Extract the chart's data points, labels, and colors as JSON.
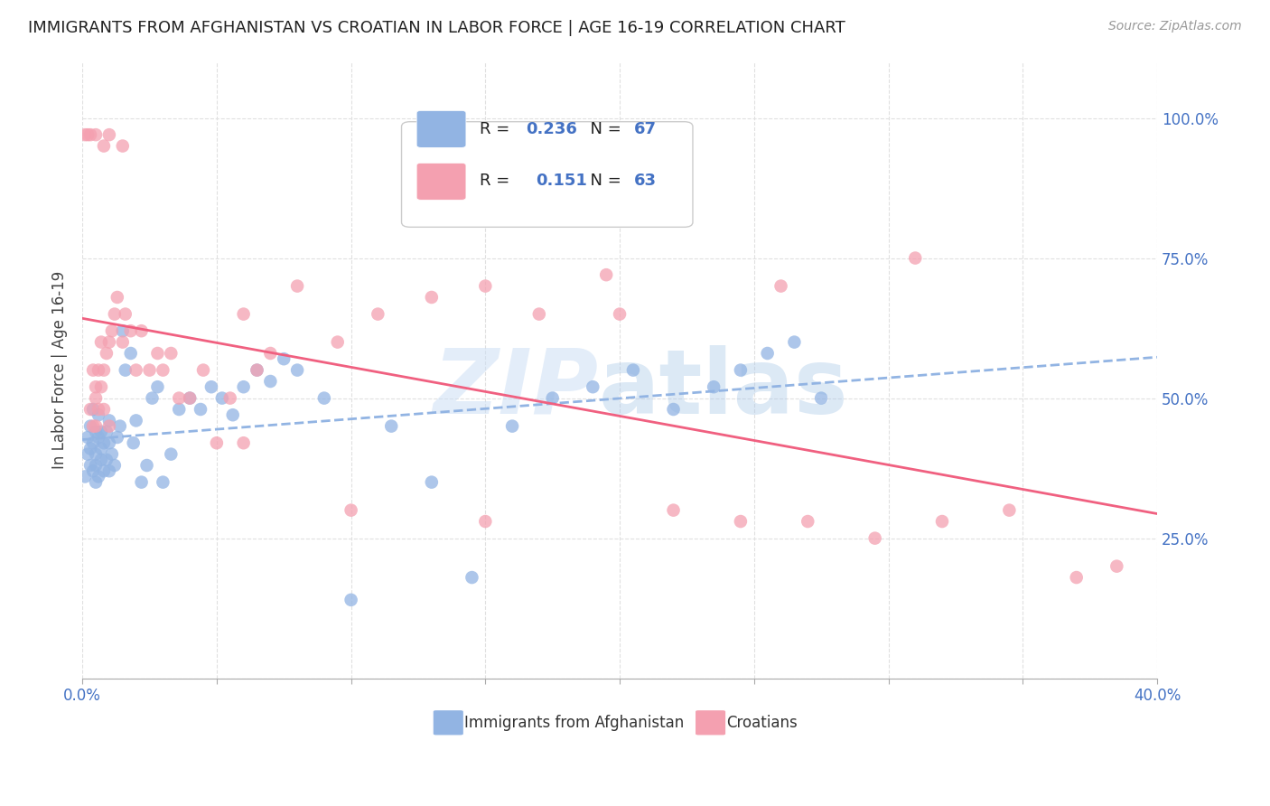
{
  "title": "IMMIGRANTS FROM AFGHANISTAN VS CROATIAN IN LABOR FORCE | AGE 16-19 CORRELATION CHART",
  "source": "Source: ZipAtlas.com",
  "ylabel": "In Labor Force | Age 16-19",
  "xlim": [
    0.0,
    0.4
  ],
  "ylim": [
    0.0,
    1.1
  ],
  "yticks": [
    0.0,
    0.25,
    0.5,
    0.75,
    1.0
  ],
  "ytick_labels_right": [
    "",
    "25.0%",
    "50.0%",
    "75.0%",
    "100.0%"
  ],
  "xticks": [
    0.0,
    0.05,
    0.1,
    0.15,
    0.2,
    0.25,
    0.3,
    0.35,
    0.4
  ],
  "xtick_labels": [
    "0.0%",
    "",
    "",
    "",
    "",
    "",
    "",
    "",
    "40.0%"
  ],
  "afghanistan_color": "#92b4e3",
  "croatian_color": "#f4a0b0",
  "croatian_line_color": "#f06080",
  "legend_r_afghan": "0.236",
  "legend_n_afghan": "67",
  "legend_r_croatian": "0.151",
  "legend_n_croatian": "63",
  "background_color": "#ffffff",
  "grid_color": "#e0e0e0",
  "afghanistan_x": [
    0.001,
    0.002,
    0.002,
    0.003,
    0.003,
    0.003,
    0.004,
    0.004,
    0.004,
    0.005,
    0.005,
    0.005,
    0.005,
    0.006,
    0.006,
    0.006,
    0.007,
    0.007,
    0.007,
    0.008,
    0.008,
    0.009,
    0.009,
    0.01,
    0.01,
    0.01,
    0.011,
    0.012,
    0.013,
    0.014,
    0.015,
    0.016,
    0.018,
    0.019,
    0.02,
    0.022,
    0.024,
    0.026,
    0.028,
    0.03,
    0.033,
    0.036,
    0.04,
    0.044,
    0.048,
    0.052,
    0.056,
    0.06,
    0.065,
    0.07,
    0.075,
    0.08,
    0.09,
    0.1,
    0.115,
    0.13,
    0.145,
    0.16,
    0.175,
    0.19,
    0.205,
    0.22,
    0.235,
    0.245,
    0.255,
    0.265,
    0.275
  ],
  "afghanistan_y": [
    0.36,
    0.4,
    0.43,
    0.38,
    0.41,
    0.45,
    0.37,
    0.42,
    0.48,
    0.35,
    0.4,
    0.44,
    0.38,
    0.43,
    0.47,
    0.36,
    0.41,
    0.39,
    0.44,
    0.37,
    0.42,
    0.39,
    0.44,
    0.37,
    0.42,
    0.46,
    0.4,
    0.38,
    0.43,
    0.45,
    0.62,
    0.55,
    0.58,
    0.42,
    0.46,
    0.35,
    0.38,
    0.5,
    0.52,
    0.35,
    0.4,
    0.48,
    0.5,
    0.48,
    0.52,
    0.5,
    0.47,
    0.52,
    0.55,
    0.53,
    0.57,
    0.55,
    0.5,
    0.14,
    0.45,
    0.35,
    0.18,
    0.45,
    0.5,
    0.52,
    0.55,
    0.48,
    0.52,
    0.55,
    0.58,
    0.6,
    0.5
  ],
  "croatian_x": [
    0.001,
    0.002,
    0.003,
    0.003,
    0.004,
    0.004,
    0.005,
    0.005,
    0.005,
    0.006,
    0.006,
    0.007,
    0.007,
    0.008,
    0.008,
    0.009,
    0.01,
    0.01,
    0.011,
    0.012,
    0.013,
    0.015,
    0.016,
    0.018,
    0.02,
    0.022,
    0.025,
    0.028,
    0.03,
    0.033,
    0.036,
    0.04,
    0.045,
    0.05,
    0.055,
    0.06,
    0.065,
    0.07,
    0.08,
    0.095,
    0.11,
    0.13,
    0.15,
    0.17,
    0.195,
    0.22,
    0.245,
    0.27,
    0.295,
    0.32,
    0.345,
    0.37,
    0.385,
    0.005,
    0.008,
    0.01,
    0.015,
    0.06,
    0.1,
    0.15,
    0.2,
    0.26,
    0.31
  ],
  "croatian_y": [
    0.97,
    0.97,
    0.97,
    0.48,
    0.45,
    0.55,
    0.45,
    0.5,
    0.52,
    0.48,
    0.55,
    0.52,
    0.6,
    0.48,
    0.55,
    0.58,
    0.45,
    0.6,
    0.62,
    0.65,
    0.68,
    0.6,
    0.65,
    0.62,
    0.55,
    0.62,
    0.55,
    0.58,
    0.55,
    0.58,
    0.5,
    0.5,
    0.55,
    0.42,
    0.5,
    0.65,
    0.55,
    0.58,
    0.7,
    0.6,
    0.65,
    0.68,
    0.7,
    0.65,
    0.72,
    0.3,
    0.28,
    0.28,
    0.25,
    0.28,
    0.3,
    0.18,
    0.2,
    0.97,
    0.95,
    0.97,
    0.95,
    0.42,
    0.3,
    0.28,
    0.65,
    0.7,
    0.75
  ]
}
